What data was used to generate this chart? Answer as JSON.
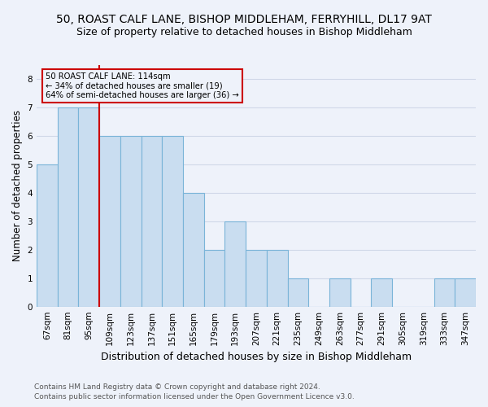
{
  "title": "50, ROAST CALF LANE, BISHOP MIDDLEHAM, FERRYHILL, DL17 9AT",
  "subtitle": "Size of property relative to detached houses in Bishop Middleham",
  "xlabel": "Distribution of detached houses by size in Bishop Middleham",
  "ylabel": "Number of detached properties",
  "footer_line1": "Contains HM Land Registry data © Crown copyright and database right 2024.",
  "footer_line2": "Contains public sector information licensed under the Open Government Licence v3.0.",
  "categories": [
    "67sqm",
    "81sqm",
    "95sqm",
    "109sqm",
    "123sqm",
    "137sqm",
    "151sqm",
    "165sqm",
    "179sqm",
    "193sqm",
    "207sqm",
    "221sqm",
    "235sqm",
    "249sqm",
    "263sqm",
    "277sqm",
    "291sqm",
    "305sqm",
    "319sqm",
    "333sqm",
    "347sqm"
  ],
  "values": [
    5,
    7,
    7,
    6,
    6,
    6,
    6,
    4,
    2,
    3,
    2,
    2,
    1,
    0,
    1,
    0,
    1,
    0,
    0,
    1,
    1
  ],
  "bar_color": "#c9ddf0",
  "bar_edge_color": "#7ab4d8",
  "red_line_x": 2.5,
  "annotation_text_line1": "50 ROAST CALF LANE: 114sqm",
  "annotation_text_line2": "← 34% of detached houses are smaller (19)",
  "annotation_text_line3": "64% of semi-detached houses are larger (36) →",
  "annotation_box_color": "#cc0000",
  "ylim": [
    0,
    8.5
  ],
  "yticks": [
    0,
    1,
    2,
    3,
    4,
    5,
    6,
    7,
    8
  ],
  "grid_color": "#d0d8e8",
  "bg_color": "#eef2fa",
  "title_fontsize": 10,
  "subtitle_fontsize": 9,
  "xlabel_fontsize": 9,
  "ylabel_fontsize": 8.5,
  "tick_fontsize": 7.5,
  "footer_fontsize": 6.5
}
